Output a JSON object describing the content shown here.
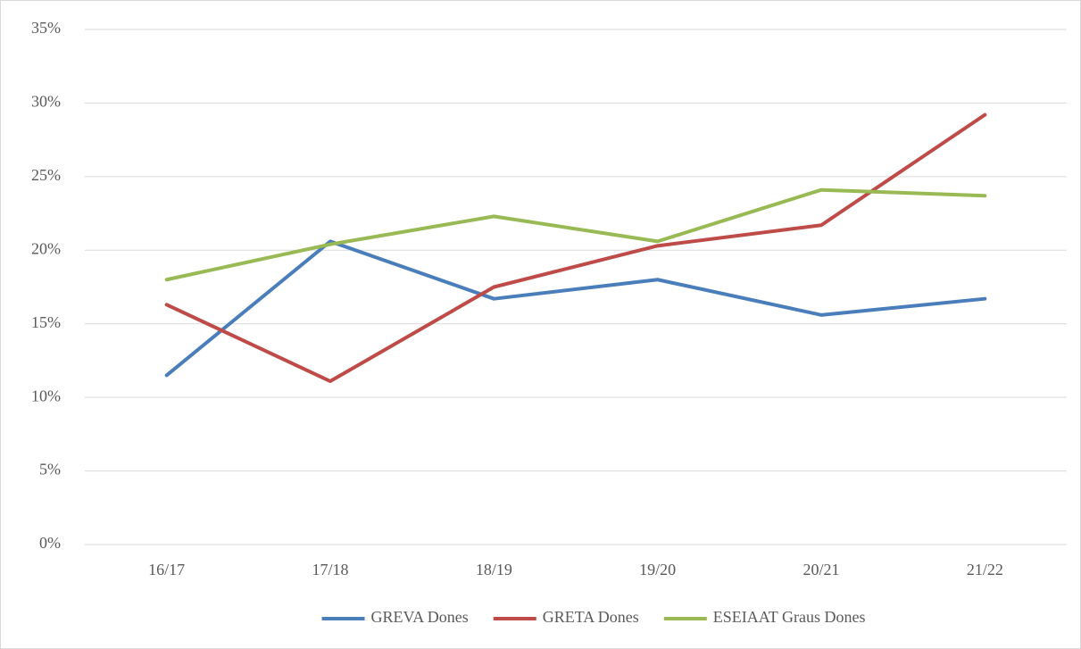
{
  "chart_data": {
    "type": "line",
    "categories": [
      "16/17",
      "17/18",
      "18/19",
      "19/20",
      "20/21",
      "21/22"
    ],
    "series": [
      {
        "name": "GREVA Dones",
        "color": "#4a7ebb",
        "values": [
          11.5,
          20.6,
          16.7,
          18.0,
          15.6,
          16.7
        ]
      },
      {
        "name": "GRETA Dones",
        "color": "#be4b48",
        "values": [
          16.3,
          11.1,
          17.5,
          20.3,
          21.7,
          29.2
        ]
      },
      {
        "name": "ESEIAAT Graus Dones",
        "color": "#98b954",
        "values": [
          18.0,
          20.4,
          22.3,
          20.6,
          24.1,
          23.7
        ]
      }
    ],
    "ylim": [
      0,
      35
    ],
    "yticks": [
      {
        "value": 0,
        "label": "0%"
      },
      {
        "value": 5,
        "label": "5%"
      },
      {
        "value": 10,
        "label": "10%"
      },
      {
        "value": 15,
        "label": "15%"
      },
      {
        "value": 20,
        "label": "20%"
      },
      {
        "value": 25,
        "label": "25%"
      },
      {
        "value": 30,
        "label": "30%"
      },
      {
        "value": 35,
        "label": "35%"
      }
    ],
    "grid": true,
    "legend": "bottom"
  }
}
